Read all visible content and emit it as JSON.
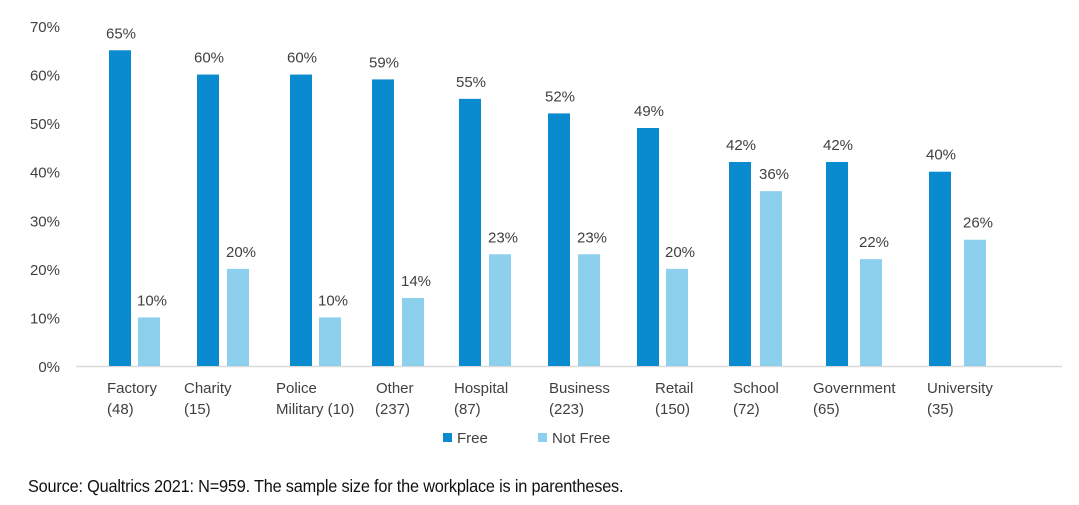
{
  "chart_data": {
    "type": "bar",
    "title": "",
    "xlabel": "",
    "ylabel": "",
    "ylim": [
      0,
      70
    ],
    "yticks": [
      "0%",
      "10%",
      "20%",
      "30%",
      "40%",
      "50%",
      "60%",
      "70%"
    ],
    "ytick_values": [
      0,
      10,
      20,
      30,
      40,
      50,
      60,
      70
    ],
    "grid": false,
    "legend_position": "bottom-center",
    "categories": [
      {
        "name": "Factory",
        "n": "(48)"
      },
      {
        "name": "Charity",
        "n": "(15)"
      },
      {
        "name": "Police",
        "n": "Military (10)"
      },
      {
        "name": "Other",
        "n": "(237)"
      },
      {
        "name": "Hospital",
        "n": "(87)"
      },
      {
        "name": "Business",
        "n": "(223)"
      },
      {
        "name": "Retail",
        "n": "(150)"
      },
      {
        "name": "School",
        "n": "(72)"
      },
      {
        "name": "Government",
        "n": "(65)"
      },
      {
        "name": "University",
        "n": "(35)"
      }
    ],
    "series": [
      {
        "name": "Free",
        "color": "#0A8BD0",
        "values": [
          65,
          60,
          60,
          59,
          55,
          52,
          49,
          42,
          42,
          40
        ],
        "labels": [
          "65%",
          "60%",
          "60%",
          "59%",
          "55%",
          "52%",
          "49%",
          "42%",
          "42%",
          "40%"
        ]
      },
      {
        "name": "Not Free",
        "color": "#8DD0EE",
        "values": [
          10,
          20,
          10,
          14,
          23,
          23,
          20,
          36,
          22,
          26
        ],
        "labels": [
          "10%",
          "20%",
          "10%",
          "14%",
          "23%",
          "23%",
          "20%",
          "36%",
          "22%",
          "26%"
        ]
      }
    ]
  },
  "source_note": "Source: Qualtrics 2021: N=959. The sample size for the workplace is in parentheses."
}
